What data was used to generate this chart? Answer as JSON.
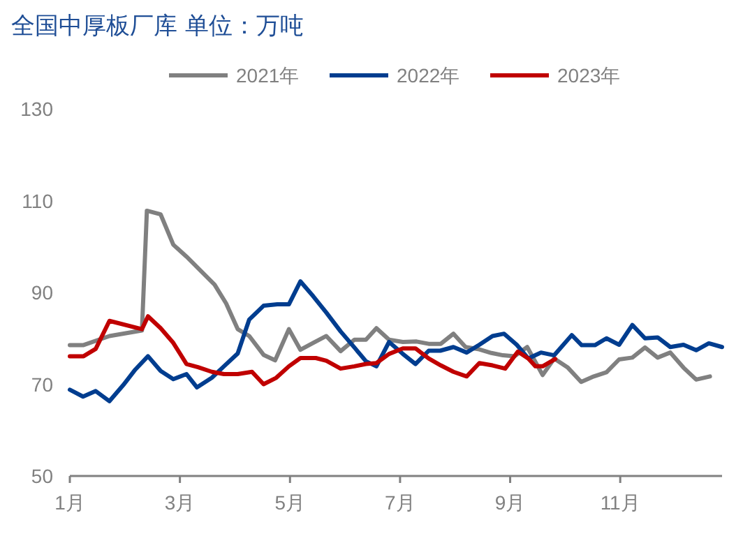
{
  "chart_data": {
    "type": "line",
    "title": "全国中厚板厂库 单位：万吨",
    "legend": "top",
    "xlim": [
      1,
      12.85
    ],
    "xticks": [
      {
        "value": 1,
        "label": "1月"
      },
      {
        "value": 3,
        "label": "3月"
      },
      {
        "value": 5,
        "label": "5月"
      },
      {
        "value": 7,
        "label": "7月"
      },
      {
        "value": 9,
        "label": "9月"
      },
      {
        "value": 11,
        "label": "11月"
      }
    ],
    "ylim": [
      50,
      130
    ],
    "yticks": [
      50,
      70,
      90,
      110,
      130
    ],
    "series": [
      {
        "name": "2021年",
        "color": "#808080",
        "x": [
          1,
          1.24,
          1.72,
          2.31,
          2.4,
          2.65,
          2.88,
          3.12,
          3.37,
          3.63,
          3.84,
          4.05,
          4.26,
          4.52,
          4.73,
          4.98,
          5.19,
          5.42,
          5.66,
          5.92,
          6.17,
          6.38,
          6.57,
          6.8,
          7.05,
          7.3,
          7.52,
          7.74,
          7.97,
          8.19,
          8.44,
          8.66,
          8.87,
          9.08,
          9.31,
          9.59,
          9.8,
          10.05,
          10.29,
          10.52,
          10.75,
          10.98,
          11.22,
          11.45,
          11.68,
          11.91,
          12.15,
          12.38,
          12.63
        ],
        "values": [
          78.5,
          78.5,
          80.5,
          81.7,
          107.8,
          107,
          100.4,
          97.8,
          94.8,
          91.7,
          87.6,
          82,
          80.5,
          76.4,
          75.2,
          82,
          77.5,
          79,
          80.5,
          77.2,
          79.7,
          79.7,
          82.2,
          79.7,
          79.2,
          79.3,
          78.8,
          78.8,
          81,
          78.1,
          77.6,
          76.8,
          76.3,
          76.1,
          78.1,
          72,
          75.6,
          73.6,
          70.5,
          71.7,
          72.6,
          75.4,
          75.8,
          78,
          75.8,
          76.9,
          73.6,
          71,
          71.7
        ]
      },
      {
        "name": "2022年",
        "color": "#003d8f",
        "x": [
          1,
          1.24,
          1.47,
          1.72,
          1.97,
          2.19,
          2.42,
          2.65,
          2.88,
          3.12,
          3.31,
          3.58,
          3.8,
          4.05,
          4.26,
          4.52,
          4.77,
          4.98,
          5.19,
          5.42,
          5.66,
          5.92,
          6.17,
          6.38,
          6.57,
          6.8,
          7.05,
          7.28,
          7.52,
          7.73,
          7.97,
          8.21,
          8.44,
          8.68,
          8.89,
          9.12,
          9.33,
          9.56,
          9.8,
          10.12,
          10.3,
          10.54,
          10.75,
          10.98,
          11.22,
          11.45,
          11.68,
          11.91,
          12.15,
          12.38,
          12.61,
          12.85
        ],
        "values": [
          68.8,
          67.3,
          68.5,
          66.3,
          69.8,
          73.2,
          76.1,
          72.9,
          71.1,
          72.2,
          69.3,
          71.4,
          73.9,
          76.7,
          84.1,
          87.1,
          87.4,
          87.4,
          92.4,
          89.2,
          85.6,
          81.5,
          78,
          75,
          73.9,
          79.2,
          76.6,
          74.4,
          77.3,
          77.3,
          78.1,
          76.9,
          78.6,
          80.5,
          81,
          78.6,
          75.6,
          76.9,
          76.3,
          80.7,
          78.5,
          78.5,
          80,
          78.6,
          82.9,
          80,
          80.2,
          78.1,
          78.6,
          77.4,
          78.9,
          78.1
        ]
      },
      {
        "name": "2023年",
        "color": "#c00000",
        "x": [
          1,
          1.25,
          1.47,
          1.72,
          2.31,
          2.42,
          2.65,
          2.88,
          3.12,
          3.33,
          3.58,
          3.8,
          4.05,
          4.31,
          4.52,
          4.75,
          4.98,
          5.19,
          5.47,
          5.66,
          5.92,
          6.17,
          6.38,
          6.57,
          6.8,
          7.05,
          7.28,
          7.52,
          7.74,
          7.97,
          8.21,
          8.44,
          8.68,
          8.91,
          9.14,
          9.33,
          9.46,
          9.59,
          9.82
        ],
        "values": [
          76.1,
          76.1,
          77.7,
          83.8,
          82,
          84.8,
          82.2,
          79,
          74.4,
          73.7,
          72.7,
          72.2,
          72.2,
          72.7,
          70,
          71.4,
          73.9,
          75.7,
          75.7,
          75.1,
          73.4,
          73.9,
          74.4,
          74.6,
          76.6,
          77.8,
          77.8,
          75.6,
          74.1,
          72.7,
          71.7,
          74.6,
          74.1,
          73.4,
          77.1,
          75.6,
          73.9,
          73.9,
          75.5
        ]
      }
    ]
  }
}
